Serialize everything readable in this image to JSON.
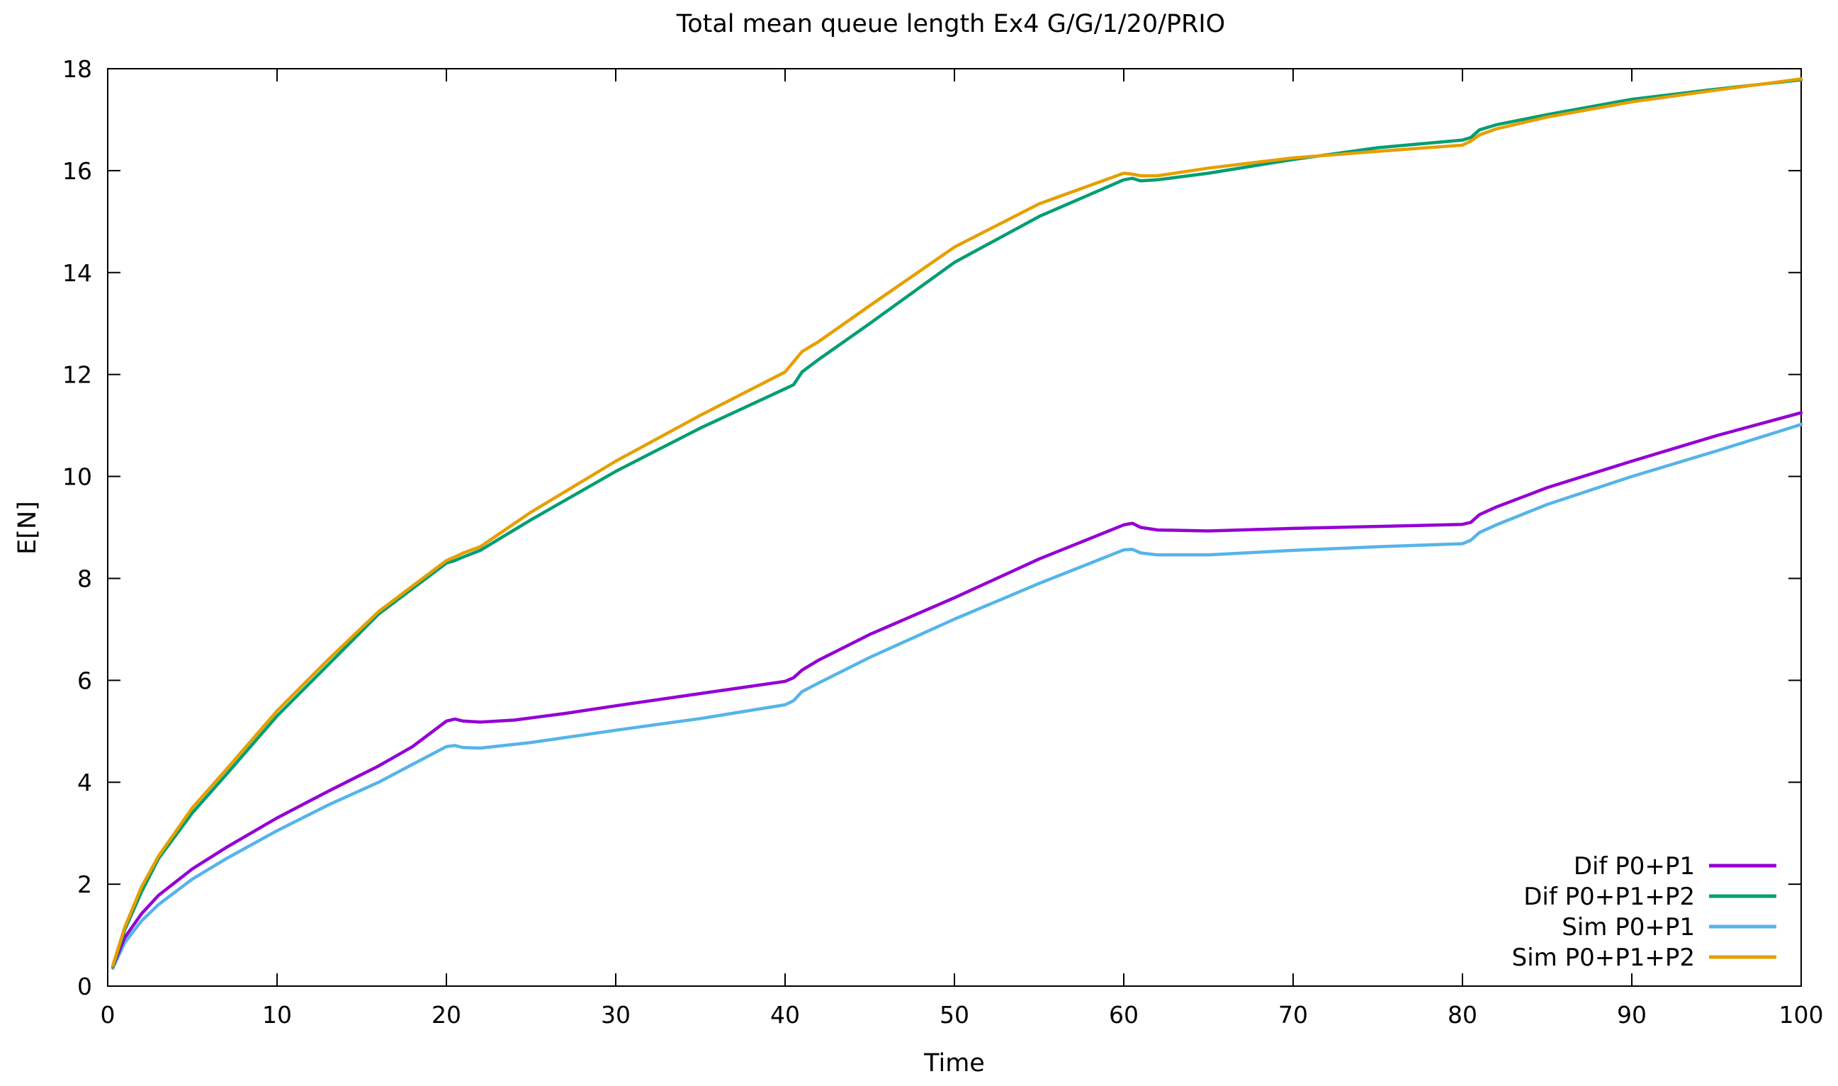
{
  "chart_data": {
    "type": "line",
    "title": "Total mean queue length Ex4 G/G/1/20/PRIO",
    "xlabel": "Time",
    "ylabel": "E[N]",
    "xlim": [
      0,
      100
    ],
    "ylim": [
      0,
      18
    ],
    "xticks": [
      0,
      10,
      20,
      30,
      40,
      50,
      60,
      70,
      80,
      90,
      100
    ],
    "yticks": [
      0,
      2,
      4,
      6,
      8,
      10,
      12,
      14,
      16,
      18
    ],
    "grid": false,
    "legend_position": "bottom-right",
    "series": [
      {
        "name": "Dif P0+P1",
        "color": "#9400d3",
        "x": [
          0.3,
          1,
          2,
          3,
          5,
          7,
          10,
          13,
          16,
          18,
          20,
          20.5,
          21,
          22,
          24,
          27,
          30,
          35,
          40,
          40.5,
          41,
          42,
          45,
          50,
          55,
          60,
          60.5,
          61,
          62,
          65,
          70,
          75,
          80,
          80.5,
          81,
          82,
          85,
          90,
          95,
          100
        ],
        "y": [
          0.38,
          0.95,
          1.42,
          1.78,
          2.3,
          2.72,
          3.3,
          3.82,
          4.32,
          4.7,
          5.2,
          5.24,
          5.2,
          5.18,
          5.22,
          5.35,
          5.5,
          5.74,
          5.98,
          6.05,
          6.2,
          6.4,
          6.9,
          7.62,
          8.38,
          9.05,
          9.08,
          9.0,
          8.95,
          8.93,
          8.98,
          9.02,
          9.06,
          9.1,
          9.25,
          9.4,
          9.78,
          10.3,
          10.8,
          11.25
        ]
      },
      {
        "name": "Dif P0+P1+P2",
        "color": "#009e73",
        "x": [
          0.3,
          1,
          2,
          3,
          5,
          7,
          10,
          13,
          16,
          18,
          20,
          20.5,
          21,
          22,
          25,
          30,
          35,
          40,
          40.5,
          41,
          42,
          45,
          50,
          55,
          60,
          60.5,
          61,
          62,
          65,
          70,
          75,
          80,
          80.5,
          81,
          82,
          85,
          90,
          95,
          100
        ],
        "y": [
          0.38,
          1.1,
          1.85,
          2.5,
          3.4,
          4.15,
          5.3,
          6.3,
          7.3,
          7.8,
          8.3,
          8.35,
          8.42,
          8.55,
          9.15,
          10.1,
          10.95,
          11.72,
          11.8,
          12.05,
          12.3,
          13.0,
          14.2,
          15.1,
          15.82,
          15.85,
          15.8,
          15.82,
          15.95,
          16.22,
          16.45,
          16.6,
          16.65,
          16.8,
          16.9,
          17.1,
          17.4,
          17.6,
          17.78
        ]
      },
      {
        "name": "Sim P0+P1",
        "color": "#56b4e9",
        "x": [
          0.3,
          1,
          2,
          3,
          5,
          7,
          10,
          13,
          16,
          18,
          20,
          20.5,
          21,
          22,
          25,
          30,
          35,
          40,
          40.5,
          41,
          42,
          45,
          50,
          55,
          60,
          60.5,
          61,
          62,
          65,
          70,
          75,
          80,
          80.5,
          81,
          82,
          85,
          90,
          95,
          100
        ],
        "y": [
          0.35,
          0.85,
          1.28,
          1.6,
          2.1,
          2.5,
          3.05,
          3.55,
          4.0,
          4.35,
          4.7,
          4.72,
          4.68,
          4.67,
          4.78,
          5.02,
          5.25,
          5.52,
          5.6,
          5.78,
          5.95,
          6.45,
          7.2,
          7.9,
          8.56,
          8.57,
          8.5,
          8.46,
          8.46,
          8.55,
          8.62,
          8.68,
          8.75,
          8.9,
          9.05,
          9.45,
          10.0,
          10.5,
          11.02
        ]
      },
      {
        "name": "Sim P0+P1+P2",
        "color": "#e69f00",
        "x": [
          0.3,
          1,
          2,
          3,
          5,
          7,
          10,
          13,
          16,
          18,
          20,
          20.5,
          21,
          22,
          25,
          30,
          35,
          40,
          40.5,
          41,
          42,
          45,
          50,
          55,
          60,
          60.5,
          61,
          62,
          65,
          70,
          75,
          80,
          80.5,
          81,
          82,
          85,
          90,
          95,
          100
        ],
        "y": [
          0.4,
          1.15,
          1.95,
          2.55,
          3.5,
          4.25,
          5.4,
          6.4,
          7.35,
          7.85,
          8.35,
          8.42,
          8.5,
          8.62,
          9.3,
          10.3,
          11.2,
          12.05,
          12.25,
          12.45,
          12.65,
          13.35,
          14.5,
          15.35,
          15.95,
          15.93,
          15.9,
          15.9,
          16.05,
          16.25,
          16.38,
          16.5,
          16.58,
          16.7,
          16.82,
          17.05,
          17.35,
          17.58,
          17.8
        ]
      }
    ]
  }
}
